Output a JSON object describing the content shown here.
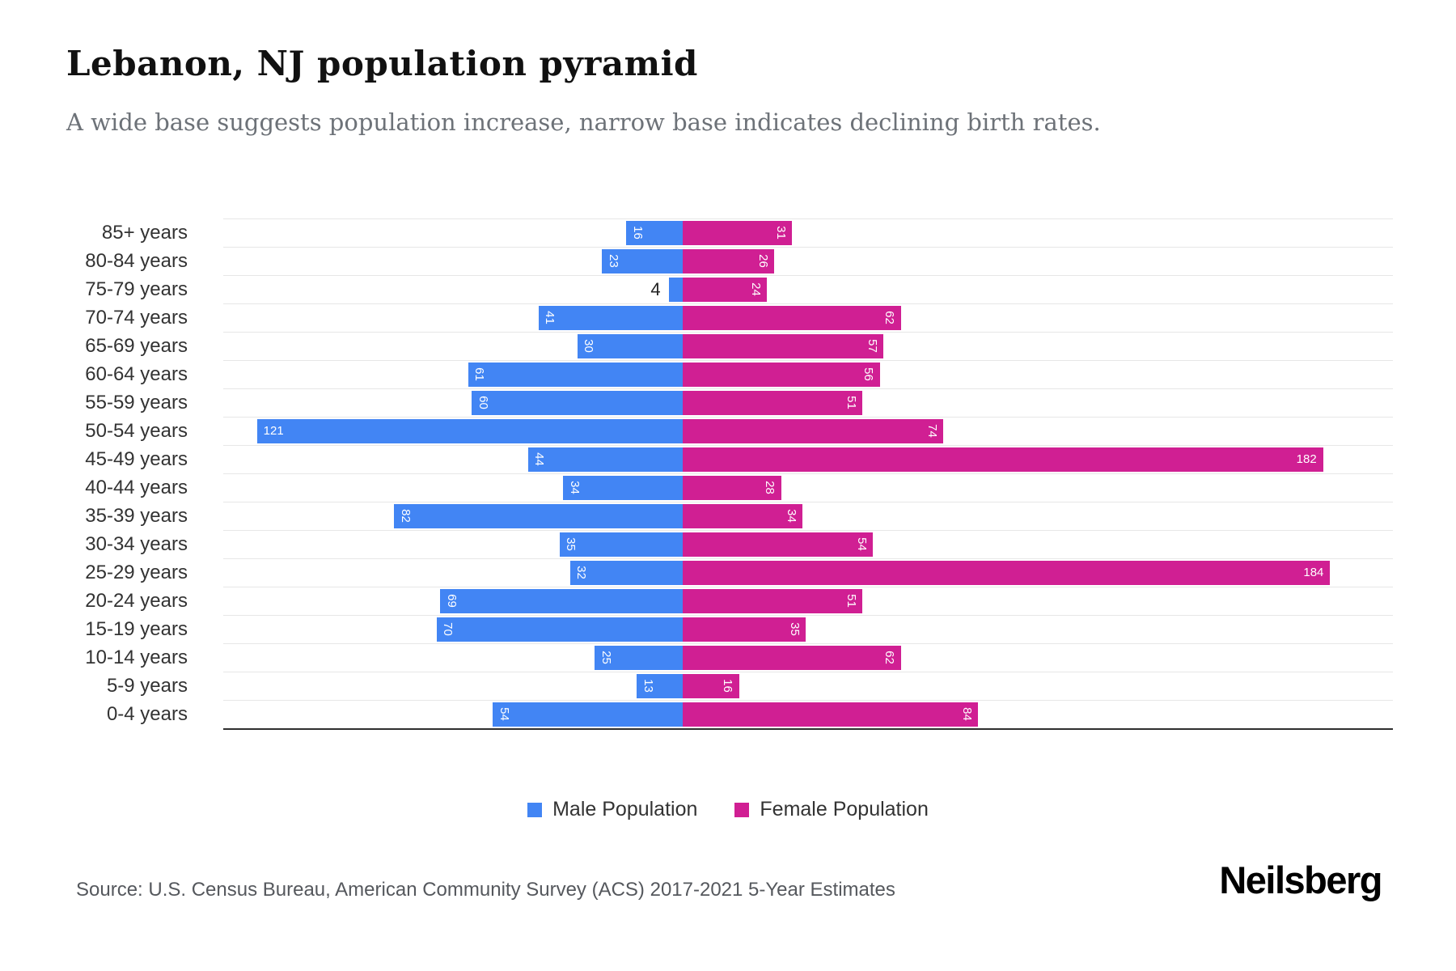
{
  "header": {
    "title": "Lebanon, NJ population pyramid",
    "subtitle": "A wide base suggests population increase, narrow base indicates declining birth rates."
  },
  "chart_data": {
    "type": "bar",
    "variant": "population-pyramid",
    "orientation": "horizontal",
    "categories": [
      "85+ years",
      "80-84 years",
      "75-79 years",
      "70-74 years",
      "65-69 years",
      "60-64 years",
      "55-59 years",
      "50-54 years",
      "45-49 years",
      "40-44 years",
      "35-39 years",
      "30-34 years",
      "25-29 years",
      "20-24 years",
      "15-19 years",
      "10-14 years",
      "5-9 years",
      "0-4 years"
    ],
    "series": [
      {
        "name": "Male Population",
        "color": "#4285F4",
        "direction": "left",
        "values": [
          16,
          23,
          4,
          41,
          30,
          61,
          60,
          121,
          44,
          34,
          82,
          35,
          32,
          69,
          70,
          25,
          13,
          54
        ]
      },
      {
        "name": "Female Population",
        "color": "#D01F93",
        "direction": "right",
        "values": [
          31,
          26,
          24,
          62,
          57,
          56,
          51,
          74,
          182,
          28,
          34,
          54,
          184,
          51,
          35,
          62,
          16,
          84
        ]
      }
    ],
    "xlim_per_side": [
      0,
      190
    ],
    "grid": true,
    "gridline_color": "#e7e7e7",
    "axis_color": "#2f2f2f",
    "legend_position": "bottom"
  },
  "legend": {
    "male_label": "Male Population",
    "female_label": "Female Population"
  },
  "footer": {
    "source": "Source: U.S. Census Bureau, American Community Survey (ACS) 2017-2021 5-Year Estimates",
    "brand": "Neilsberg"
  }
}
